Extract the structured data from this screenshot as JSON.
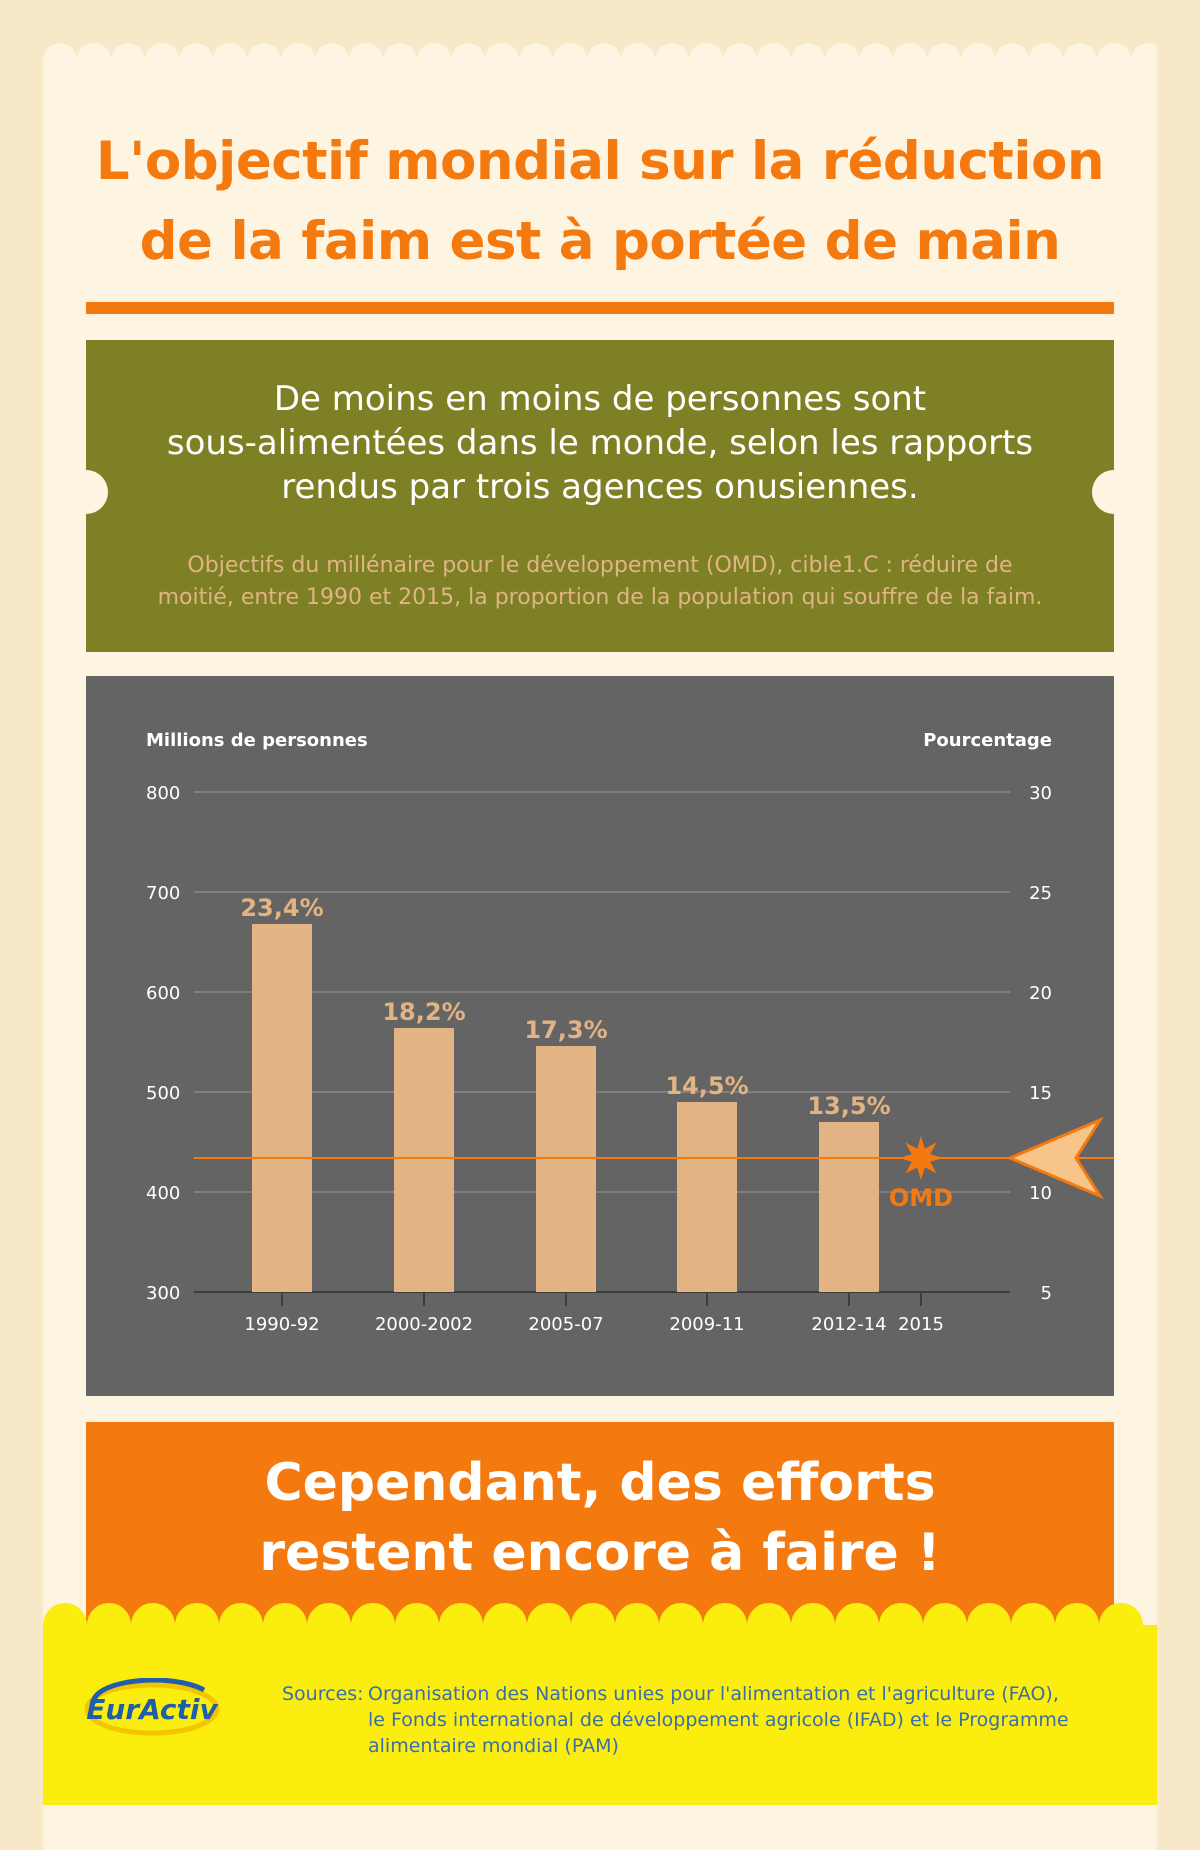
{
  "title_line1": "L'objectif mondial sur la réduction",
  "title_line2": "de la faim est à portée de main",
  "lead_line1": "De moins en moins de personnes sont",
  "lead_line2": "sous-alimentées dans le monde, selon les rapports",
  "lead_line3": "rendus par trois agences onusiennes.",
  "objective_line1": "Objectifs du millénaire pour le développement (OMD), cible1.C : réduire de",
  "objective_line2": "moitié, entre 1990 et 2015, la proportion de la population qui souffre de la faim.",
  "chart_data": {
    "type": "bar",
    "ylabel": "Millions de personnes",
    "y2label": "Pourcentage",
    "ylim": [
      300,
      800
    ],
    "y2lim": [
      5,
      30
    ],
    "yticks": [
      800,
      700,
      600,
      500,
      400,
      300
    ],
    "y2ticks": [
      30,
      25,
      20,
      15,
      10,
      5
    ],
    "categories": [
      "1990-92",
      "2000-2002",
      "2005-07",
      "2009-11",
      "2012-14"
    ],
    "extra_tick": "2015",
    "values": [
      668,
      564,
      546,
      490,
      470
    ],
    "percent_labels": [
      "23,4%",
      "18,2%",
      "17,3%",
      "14,5%",
      "13,5%"
    ],
    "target_value_percent": 11.7,
    "target_label": "OMD",
    "grid": true,
    "colors": {
      "bar": "#e2b383",
      "background": "#646464",
      "target": "#f47a10",
      "grid": "#9a9a9a"
    }
  },
  "efforts_line1": "Cependant, des efforts",
  "efforts_line2": "restent encore à faire !",
  "sources_label": "Sources:",
  "sources_line1": "Organisation des Nations unies pour l'alimentation et l'agriculture (FAO),",
  "sources_line2": "le Fonds international de développement agricole (IFAD) et le Programme",
  "sources_line3": "alimentaire mondial (PAM)",
  "logo_text": "EurActiv",
  "colors": {
    "page": "#f7e8c8",
    "panel": "#fdf4e2",
    "orange": "#f47a10",
    "olive": "#7e8025",
    "yellow": "#fbee0f",
    "source_text": "#3a6ea8"
  }
}
